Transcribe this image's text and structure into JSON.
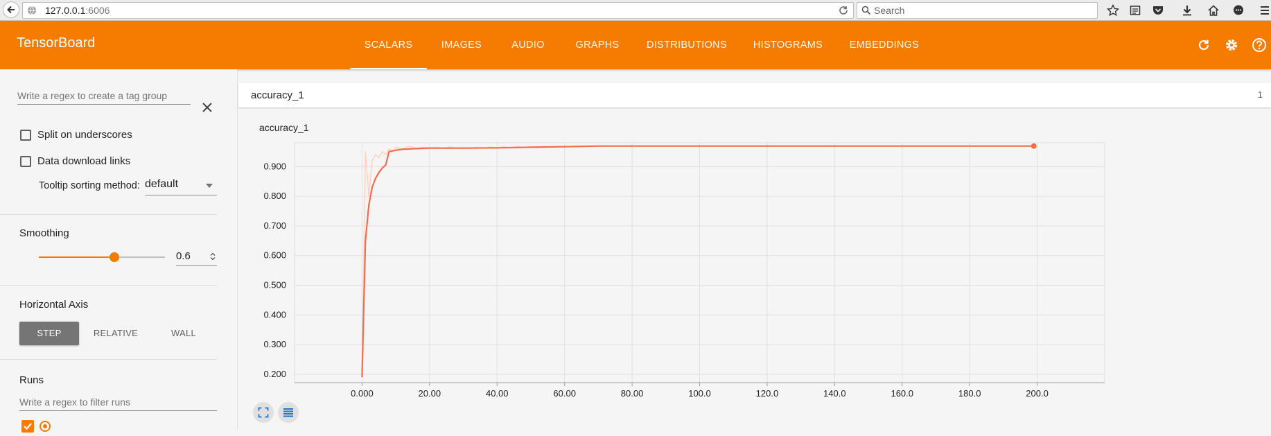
{
  "browser": {
    "url_host": "127.0.0.1",
    "url_port": ":6006",
    "search_placeholder": "Search"
  },
  "header": {
    "title": "TensorBoard",
    "tabs": [
      {
        "label": "SCALARS",
        "active": true
      },
      {
        "label": "IMAGES",
        "active": false
      },
      {
        "label": "AUDIO",
        "active": false
      },
      {
        "label": "GRAPHS",
        "active": false
      },
      {
        "label": "DISTRIBUTIONS",
        "active": false
      },
      {
        "label": "HISTOGRAMS",
        "active": false
      },
      {
        "label": "EMBEDDINGS",
        "active": false
      }
    ],
    "accent_color": "#f57c00",
    "icons": [
      "reload-icon",
      "settings-icon",
      "help-icon"
    ]
  },
  "sidebar": {
    "tag_regex_placeholder": "Write a regex to create a tag group",
    "split_on_underscores": {
      "label": "Split on underscores",
      "checked": false
    },
    "data_download_links": {
      "label": "Data download links",
      "checked": false
    },
    "tooltip_sorting": {
      "label": "Tooltip sorting method:",
      "value": "default"
    },
    "smoothing": {
      "title": "Smoothing",
      "value": "0.6",
      "fraction": 0.6
    },
    "horizontal_axis": {
      "title": "Horizontal Axis",
      "options": [
        {
          "label": "STEP",
          "active": true
        },
        {
          "label": "RELATIVE",
          "active": false
        },
        {
          "label": "WALL",
          "active": false
        }
      ]
    },
    "runs": {
      "title": "Runs",
      "filter_placeholder": "Write a regex to filter runs",
      "run_color": "#f57c00"
    }
  },
  "main": {
    "group_name": "accuracy_1",
    "group_count": "1",
    "card_title": "accuracy_1"
  },
  "chart_data": {
    "type": "line",
    "title": "accuracy_1",
    "xlim": [
      -20,
      220
    ],
    "ylim": [
      0.172,
      0.98
    ],
    "x_ticks": [
      {
        "value": 0,
        "label": "0.000"
      },
      {
        "value": 20,
        "label": "20.00"
      },
      {
        "value": 40,
        "label": "40.00"
      },
      {
        "value": 60,
        "label": "60.00"
      },
      {
        "value": 80,
        "label": "80.00"
      },
      {
        "value": 100,
        "label": "100.0"
      },
      {
        "value": 120,
        "label": "120.0"
      },
      {
        "value": 140,
        "label": "140.0"
      },
      {
        "value": 160,
        "label": "160.0"
      },
      {
        "value": 180,
        "label": "180.0"
      },
      {
        "value": 200,
        "label": "200.0"
      }
    ],
    "y_ticks": [
      {
        "value": 0.2,
        "label": "0.200"
      },
      {
        "value": 0.3,
        "label": "0.300"
      },
      {
        "value": 0.4,
        "label": "0.400"
      },
      {
        "value": 0.5,
        "label": "0.500"
      },
      {
        "value": 0.6,
        "label": "0.600"
      },
      {
        "value": 0.7,
        "label": "0.700"
      },
      {
        "value": 0.8,
        "label": "0.800"
      },
      {
        "value": 0.9,
        "label": "0.900"
      }
    ],
    "grid": true,
    "series": [
      {
        "color": "#ffd2c0",
        "points": [
          [
            0,
            0.2
          ],
          [
            1,
            0.95
          ],
          [
            2,
            0.8
          ],
          [
            3,
            0.92
          ],
          [
            4,
            0.94
          ],
          [
            5,
            0.93
          ],
          [
            6,
            0.95
          ],
          [
            7,
            0.94
          ],
          [
            8,
            0.96
          ],
          [
            9,
            0.95
          ],
          [
            10,
            0.965
          ],
          [
            12,
            0.96
          ],
          [
            14,
            0.968
          ],
          [
            16,
            0.962
          ],
          [
            18,
            0.966
          ],
          [
            20,
            0.963
          ],
          [
            22,
            0.965
          ],
          [
            24,
            0.961
          ],
          [
            26,
            0.966
          ],
          [
            28,
            0.962
          ],
          [
            30,
            0.964
          ],
          [
            32,
            0.96
          ],
          [
            34,
            0.965
          ],
          [
            36,
            0.962
          ],
          [
            38,
            0.966
          ],
          [
            40,
            0.963
          ],
          [
            42,
            0.967
          ],
          [
            44,
            0.962
          ],
          [
            46,
            0.968
          ],
          [
            48,
            0.964
          ],
          [
            50,
            0.967
          ],
          [
            52,
            0.963
          ],
          [
            54,
            0.968
          ],
          [
            56,
            0.965
          ],
          [
            58,
            0.968
          ],
          [
            60,
            0.966
          ],
          [
            62,
            0.968
          ],
          [
            64,
            0.967
          ],
          [
            66,
            0.968
          ],
          [
            70,
            0.969
          ],
          [
            80,
            0.969
          ],
          [
            100,
            0.969
          ],
          [
            120,
            0.969
          ],
          [
            140,
            0.969
          ],
          [
            160,
            0.969
          ],
          [
            180,
            0.969
          ],
          [
            199,
            0.969
          ]
        ]
      },
      {
        "color": "#f26d4c",
        "points": [
          [
            0,
            0.19
          ],
          [
            1,
            0.65
          ],
          [
            2,
            0.77
          ],
          [
            3,
            0.83
          ],
          [
            4,
            0.86
          ],
          [
            5,
            0.88
          ],
          [
            6,
            0.895
          ],
          [
            7,
            0.905
          ],
          [
            8,
            0.95
          ],
          [
            10,
            0.955
          ],
          [
            12,
            0.958
          ],
          [
            15,
            0.96
          ],
          [
            20,
            0.962
          ],
          [
            30,
            0.962
          ],
          [
            40,
            0.963
          ],
          [
            50,
            0.965
          ],
          [
            60,
            0.967
          ],
          [
            70,
            0.969
          ],
          [
            100,
            0.969
          ],
          [
            150,
            0.969
          ],
          [
            199,
            0.969
          ]
        ]
      }
    ]
  }
}
